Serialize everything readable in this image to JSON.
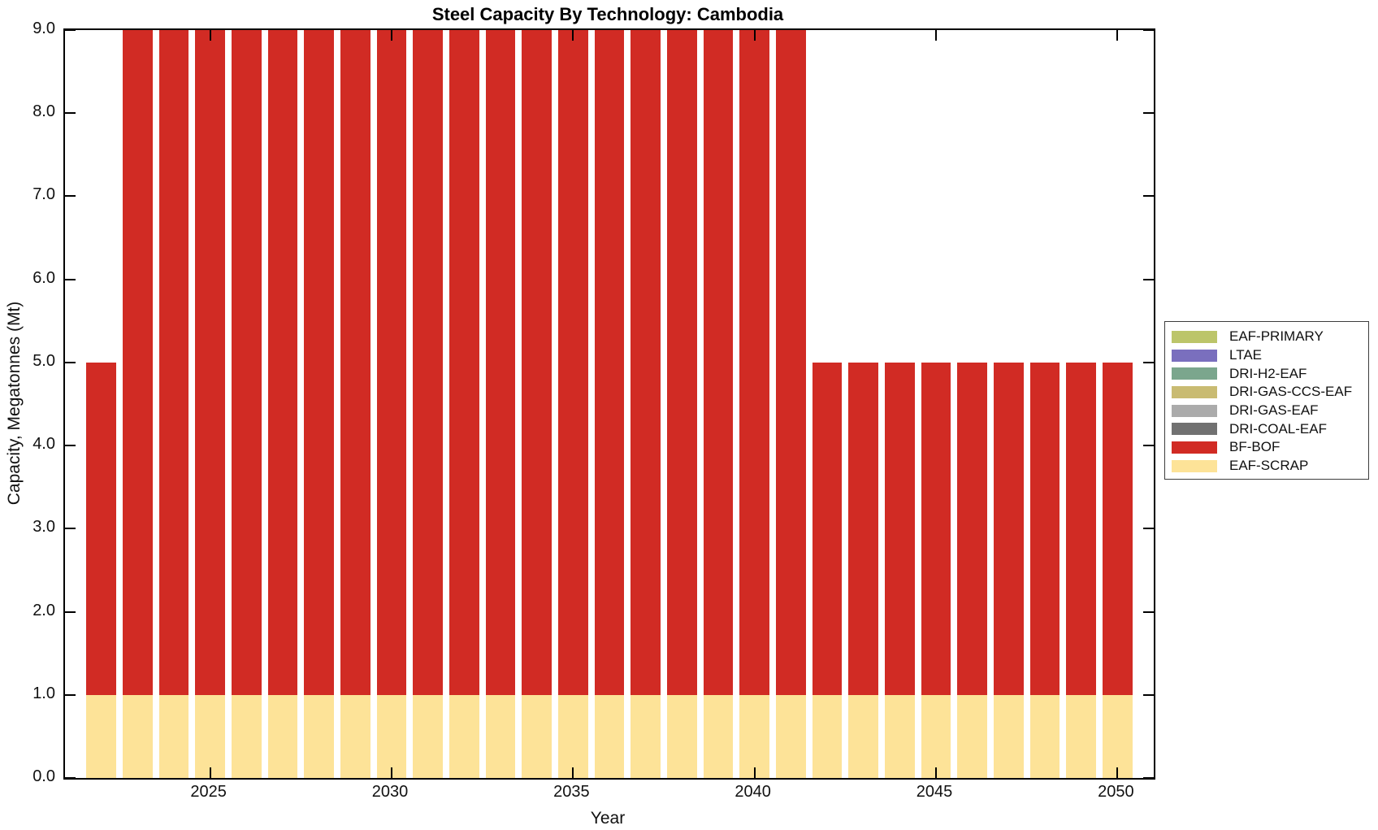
{
  "chart_data": {
    "type": "bar",
    "stacked": true,
    "title": "Steel Capacity By Technology: Cambodia",
    "xlabel": "Year",
    "ylabel": "Capacity, Megatonnes (Mt)",
    "xlim": [
      2021,
      2051
    ],
    "ylim": [
      0,
      9
    ],
    "grid": false,
    "legend_position": "right-outside",
    "bar_width_fraction": 0.82,
    "xticks": [
      2025,
      2030,
      2035,
      2040,
      2045,
      2050
    ],
    "xtick_labels": [
      "2025",
      "2030",
      "2035",
      "2040",
      "2045",
      "2050"
    ],
    "yticks": [
      0,
      1,
      2,
      3,
      4,
      5,
      6,
      7,
      8,
      9
    ],
    "ytick_labels": [
      "0.0",
      "1.0",
      "2.0",
      "3.0",
      "4.0",
      "5.0",
      "6.0",
      "7.0",
      "8.0",
      "9.0"
    ],
    "years": [
      2022,
      2023,
      2024,
      2025,
      2026,
      2027,
      2028,
      2029,
      2030,
      2031,
      2032,
      2033,
      2034,
      2035,
      2036,
      2037,
      2038,
      2039,
      2040,
      2041,
      2042,
      2043,
      2044,
      2045,
      2046,
      2047,
      2048,
      2049,
      2050
    ],
    "stack_note": "bars stack bottom-to-top in reverse of series order (EAF-SCRAP bottom, then BF-BOF)",
    "series": [
      {
        "name": "EAF-PRIMARY",
        "color": "#bcc56a",
        "values": [
          0,
          0,
          0,
          0,
          0,
          0,
          0,
          0,
          0,
          0,
          0,
          0,
          0,
          0,
          0,
          0,
          0,
          0,
          0,
          0,
          0,
          0,
          0,
          0,
          0,
          0,
          0,
          0,
          0
        ]
      },
      {
        "name": "LTAE",
        "color": "#7a6fbe",
        "values": [
          0,
          0,
          0,
          0,
          0,
          0,
          0,
          0,
          0,
          0,
          0,
          0,
          0,
          0,
          0,
          0,
          0,
          0,
          0,
          0,
          0,
          0,
          0,
          0,
          0,
          0,
          0,
          0,
          0
        ]
      },
      {
        "name": "DRI-H2-EAF",
        "color": "#7ba68d",
        "values": [
          0,
          0,
          0,
          0,
          0,
          0,
          0,
          0,
          0,
          0,
          0,
          0,
          0,
          0,
          0,
          0,
          0,
          0,
          0,
          0,
          0,
          0,
          0,
          0,
          0,
          0,
          0,
          0,
          0
        ]
      },
      {
        "name": "DRI-GAS-CCS-EAF",
        "color": "#c9bb72",
        "values": [
          0,
          0,
          0,
          0,
          0,
          0,
          0,
          0,
          0,
          0,
          0,
          0,
          0,
          0,
          0,
          0,
          0,
          0,
          0,
          0,
          0,
          0,
          0,
          0,
          0,
          0,
          0,
          0,
          0
        ]
      },
      {
        "name": "DRI-GAS-EAF",
        "color": "#ababab",
        "values": [
          0,
          0,
          0,
          0,
          0,
          0,
          0,
          0,
          0,
          0,
          0,
          0,
          0,
          0,
          0,
          0,
          0,
          0,
          0,
          0,
          0,
          0,
          0,
          0,
          0,
          0,
          0,
          0,
          0
        ]
      },
      {
        "name": "DRI-COAL-EAF",
        "color": "#717171",
        "values": [
          0,
          0,
          0,
          0,
          0,
          0,
          0,
          0,
          0,
          0,
          0,
          0,
          0,
          0,
          0,
          0,
          0,
          0,
          0,
          0,
          0,
          0,
          0,
          0,
          0,
          0,
          0,
          0,
          0
        ]
      },
      {
        "name": "BF-BOF",
        "color": "#d12b24",
        "values": [
          4,
          8,
          8,
          8,
          8,
          8,
          8,
          8,
          8,
          8,
          8,
          8,
          8,
          8,
          8,
          8,
          8,
          8,
          8,
          8,
          4,
          4,
          4,
          4,
          4,
          4,
          4,
          4,
          4
        ]
      },
      {
        "name": "EAF-SCRAP",
        "color": "#fde398",
        "values": [
          1,
          1,
          1,
          1,
          1,
          1,
          1,
          1,
          1,
          1,
          1,
          1,
          1,
          1,
          1,
          1,
          1,
          1,
          1,
          1,
          1,
          1,
          1,
          1,
          1,
          1,
          1,
          1,
          1
        ]
      }
    ]
  }
}
